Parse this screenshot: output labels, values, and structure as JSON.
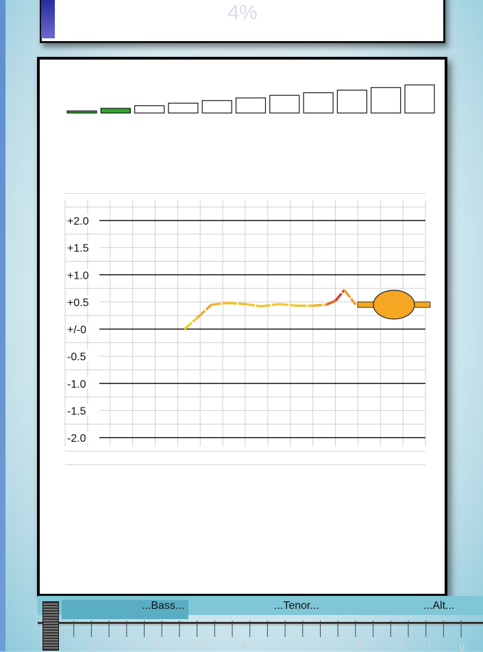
{
  "progress": {
    "label": "4%",
    "value": 4
  },
  "level_meter": {
    "bars": [
      {
        "fill": "#2ea82e"
      },
      {
        "fill": "#2ea82e"
      },
      {
        "fill": "#ffffff"
      },
      {
        "fill": "#ffffff"
      },
      {
        "fill": "#ffffff"
      },
      {
        "fill": "#ffffff"
      },
      {
        "fill": "#ffffff"
      },
      {
        "fill": "#ffffff"
      },
      {
        "fill": "#ffffff"
      },
      {
        "fill": "#ffffff"
      },
      {
        "fill": "#ffffff"
      }
    ],
    "active_count": 2
  },
  "chart_data": {
    "type": "line",
    "ylim": [
      -2.5,
      2.5
    ],
    "y_ticks": [
      "+2.0",
      "+1.5",
      "+1.0",
      "+0.5",
      "+/-0",
      "-0.5",
      "-1.0",
      "-1.5",
      "-2.0"
    ],
    "y_tick_values": [
      2.0,
      1.5,
      1.0,
      0.5,
      0.0,
      -0.5,
      -1.0,
      -1.5,
      -2.0
    ],
    "major_lines": [
      2.0,
      1.0,
      0.0,
      -1.0,
      -2.0
    ],
    "x_columns": 16,
    "grid": true,
    "series": [
      {
        "values": [
          {
            "x": 5.3,
            "y": 0.0,
            "c": "#c8e04a"
          },
          {
            "x": 5.9,
            "y": 0.22,
            "c": "#e8d030"
          },
          {
            "x": 6.5,
            "y": 0.45,
            "c": "#f0a832"
          },
          {
            "x": 7.2,
            "y": 0.48,
            "c": "#f0b830"
          },
          {
            "x": 8.0,
            "y": 0.46,
            "c": "#f0c032"
          },
          {
            "x": 8.7,
            "y": 0.42,
            "c": "#f0c832"
          },
          {
            "x": 9.5,
            "y": 0.46,
            "c": "#f2c434"
          },
          {
            "x": 10.3,
            "y": 0.43,
            "c": "#f2c836"
          },
          {
            "x": 11.0,
            "y": 0.43,
            "c": "#f2c038"
          },
          {
            "x": 11.6,
            "y": 0.45,
            "c": "#f0b030"
          },
          {
            "x": 12.0,
            "y": 0.52,
            "c": "#e66028"
          },
          {
            "x": 12.4,
            "y": 0.72,
            "c": "#e03a2a"
          },
          {
            "x": 12.9,
            "y": 0.45,
            "c": "#f0a030"
          }
        ]
      }
    ],
    "current_note": {
      "x": 14.6,
      "y": 0.45,
      "color": "#f5a623"
    }
  },
  "ruler": {
    "voice_labels": [
      "...Bass...",
      "...Tenor...",
      "...Alt..."
    ],
    "note_labels": [
      "D",
      "E",
      "F",
      "G",
      "A",
      "H",
      "c",
      "d",
      "e",
      "f",
      "g"
    ]
  },
  "colors": {
    "accent": "#f5a623",
    "band": "#7fc6d6",
    "meter_active": "#2ea82e"
  }
}
